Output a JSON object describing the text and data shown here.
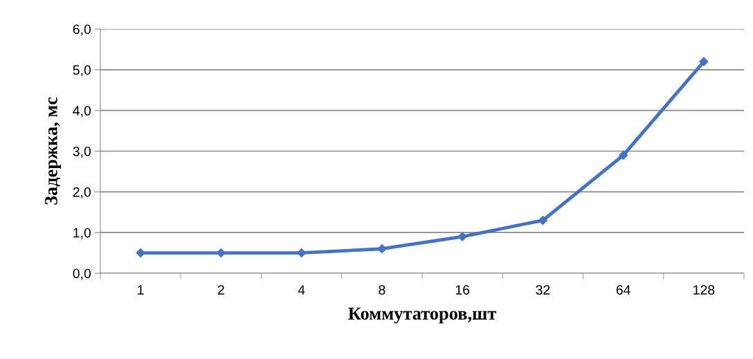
{
  "chart_data": {
    "type": "line",
    "xlabel": "Коммутаторов,шт",
    "ylabel": "Задержка, мс",
    "categories": [
      "1",
      "2",
      "4",
      "8",
      "16",
      "32",
      "64",
      "128"
    ],
    "series": [
      {
        "color": "#4472c4",
        "values": [
          0.5,
          0.5,
          0.5,
          0.6,
          0.9,
          1.3,
          2.9,
          5.2
        ]
      }
    ],
    "ylim": [
      0,
      6
    ],
    "yticks": [
      {
        "value": 0,
        "label": "0,0"
      },
      {
        "value": 1,
        "label": "1,0"
      },
      {
        "value": 2,
        "label": "2,0"
      },
      {
        "value": 3,
        "label": "3,0"
      },
      {
        "value": 4,
        "label": "4,0"
      },
      {
        "value": 5,
        "label": "5,0"
      },
      {
        "value": 6,
        "label": "6,0"
      }
    ],
    "grid": "y",
    "marker": "diamond",
    "line_style": "solid",
    "legend": false
  }
}
